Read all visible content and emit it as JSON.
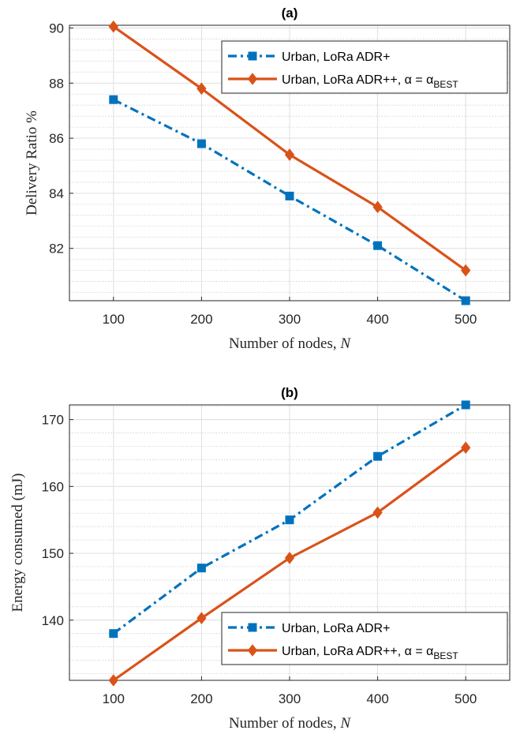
{
  "chart_data": [
    {
      "type": "line",
      "title": "(a)",
      "xlabel": "Number of nodes, ",
      "xlabel_var": "N",
      "ylabel": "Delivery Ratio %",
      "x": [
        100,
        200,
        300,
        400,
        500
      ],
      "xlim": [
        50,
        550
      ],
      "ylim": [
        80.1,
        90.1
      ],
      "xticks": [
        "100",
        "200",
        "300",
        "400",
        "500"
      ],
      "yticks": [
        82,
        84,
        86,
        88,
        90
      ],
      "grid": true,
      "legend_position": "top-right",
      "series": [
        {
          "name": "Urban, LoRa ADR+",
          "values": [
            87.4,
            85.8,
            83.9,
            82.1,
            80.1
          ],
          "color": "#0072BD",
          "style": "dash-dot",
          "marker": "square"
        },
        {
          "name": "Urban, LoRa ADR++, α = α",
          "name_sub": "BEST",
          "values": [
            90.05,
            87.8,
            85.4,
            83.5,
            81.2
          ],
          "color": "#D95319",
          "style": "solid",
          "marker": "diamond"
        }
      ]
    },
    {
      "type": "line",
      "title": "(b)",
      "xlabel": "Number of nodes, ",
      "xlabel_var": "N",
      "ylabel": "Energy consumed (mJ)",
      "x": [
        100,
        200,
        300,
        400,
        500
      ],
      "xlim": [
        50,
        550
      ],
      "ylim": [
        131,
        172.2
      ],
      "xticks": [
        "100",
        "200",
        "300",
        "400",
        "500"
      ],
      "yticks": [
        140,
        150,
        160,
        170
      ],
      "grid": true,
      "legend_position": "bottom-right",
      "series": [
        {
          "name": "Urban, LoRa ADR+",
          "values": [
            138.0,
            147.8,
            155.0,
            164.5,
            172.2
          ],
          "color": "#0072BD",
          "style": "dash-dot",
          "marker": "square"
        },
        {
          "name": "Urban, LoRa ADR++, α = α",
          "name_sub": "BEST",
          "values": [
            131.0,
            140.3,
            149.3,
            156.1,
            165.8
          ],
          "color": "#D95319",
          "style": "solid",
          "marker": "diamond"
        }
      ]
    }
  ]
}
